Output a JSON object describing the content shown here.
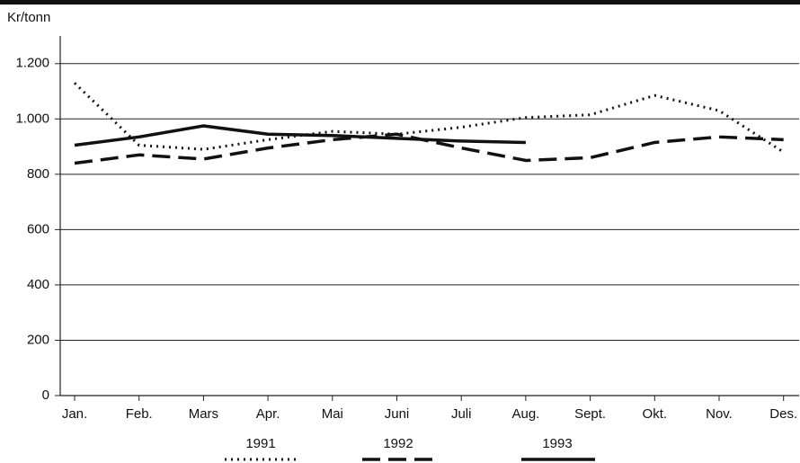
{
  "chart_data": {
    "type": "line",
    "y_label": "Kr/tonn",
    "categories": [
      "Jan.",
      "Feb.",
      "Mars",
      "Apr.",
      "Mai",
      "Juni",
      "Juli",
      "Aug.",
      "Sept.",
      "Okt.",
      "Nov.",
      "Des."
    ],
    "series": [
      {
        "name": "1991",
        "color": "#111111",
        "style": "dotted",
        "values": [
          1130,
          905,
          890,
          925,
          955,
          945,
          970,
          1005,
          1015,
          1085,
          1030,
          880
        ]
      },
      {
        "name": "1992",
        "color": "#111111",
        "style": "dashed",
        "values": [
          840,
          870,
          855,
          895,
          925,
          945,
          895,
          850,
          860,
          915,
          935,
          925
        ]
      },
      {
        "name": "1993",
        "color": "#111111",
        "style": "solid",
        "values": [
          905,
          935,
          975,
          945,
          940,
          930,
          920,
          915,
          null,
          null,
          null,
          null
        ]
      }
    ],
    "ylim": [
      0,
      1300
    ],
    "yticks": [
      0,
      200,
      400,
      600,
      800,
      {
        "value": 1000,
        "label": "1.000"
      },
      {
        "value": 1200,
        "label": "1.200"
      }
    ],
    "grid": true
  }
}
